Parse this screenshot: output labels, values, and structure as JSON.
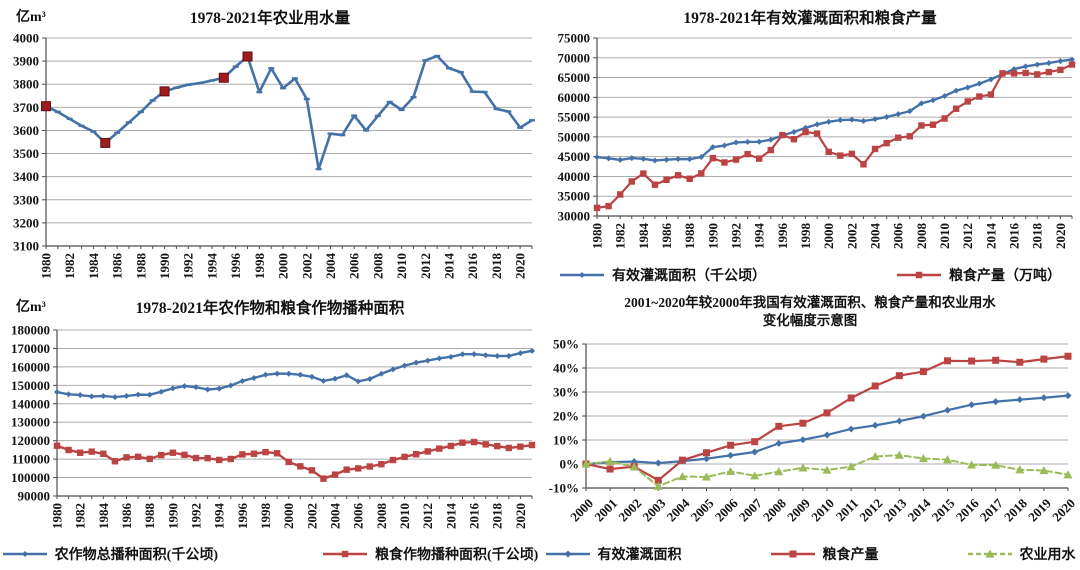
{
  "chart_data": [
    {
      "id": "agricultural-water-use",
      "type": "line",
      "title": "1978-2021年农业用水量",
      "unit_label": "亿m³",
      "ylim": [
        3100,
        4000
      ],
      "y_step": 100,
      "y_suffix": "",
      "grid": true,
      "legend_position": "none",
      "x_label_every": 2,
      "x_label_rotation": 90,
      "x": [
        1980,
        1981,
        1982,
        1983,
        1984,
        1985,
        1986,
        1987,
        1988,
        1989,
        1990,
        1991,
        1992,
        1993,
        1994,
        1995,
        1996,
        1997,
        1998,
        1999,
        2000,
        2001,
        2002,
        2003,
        2004,
        2005,
        2006,
        2007,
        2008,
        2009,
        2010,
        2011,
        2012,
        2013,
        2014,
        2015,
        2016,
        2017,
        2018,
        2019,
        2020,
        2021
      ],
      "series": [
        {
          "color": "#4472A8",
          "marker": "dash",
          "width": 2.6,
          "values": [
            3705,
            3680,
            3650,
            3620,
            3595,
            3546,
            3590,
            3635,
            3680,
            3730,
            3769,
            3785,
            3798,
            3805,
            3816,
            3828,
            3876,
            3920,
            3766,
            3869,
            3783,
            3825,
            3736,
            3433,
            3586,
            3580,
            3664,
            3600,
            3663,
            3723,
            3689,
            3744,
            3903,
            3922,
            3869,
            3852,
            3768,
            3766,
            3693,
            3682,
            3612,
            3644
          ]
        },
        {
          "color": "#9E1B1E",
          "marker": "square",
          "marker_size": 4.5,
          "marker_stroke": "#5E0F12",
          "line": false,
          "x": [
            1980,
            1985,
            1990,
            1995,
            1997
          ],
          "values": [
            3705,
            3546,
            3769,
            3828,
            3920
          ]
        }
      ]
    },
    {
      "id": "irrigation-area-and-grain-output",
      "type": "line",
      "title": "1978-2021年有效灌溉面积和粮食产量",
      "ylim": [
        30000,
        75000
      ],
      "y_step": 5000,
      "y_suffix": "",
      "grid": true,
      "legend_position": "bottom",
      "x_label_every": 2,
      "x_label_rotation": 90,
      "x": [
        1980,
        1981,
        1982,
        1983,
        1984,
        1985,
        1986,
        1987,
        1988,
        1989,
        1990,
        1991,
        1992,
        1993,
        1994,
        1995,
        1996,
        1997,
        1998,
        1999,
        2000,
        2001,
        2002,
        2003,
        2004,
        2005,
        2006,
        2007,
        2008,
        2009,
        2010,
        2011,
        2012,
        2013,
        2014,
        2015,
        2016,
        2017,
        2018,
        2019,
        2020,
        2021
      ],
      "series": [
        {
          "name": "有效灌溉面积（千公顷）",
          "color": "#4472A8",
          "marker": "diamond",
          "marker_size": 3,
          "width": 2.4,
          "values": [
            44888,
            44574,
            44177,
            44644,
            44453,
            44036,
            44226,
            44403,
            44376,
            44917,
            47403,
            47822,
            48590,
            48728,
            48759,
            49281,
            50381,
            51239,
            52296,
            53158,
            53820,
            54249,
            54355,
            54014,
            54478,
            55029,
            55750,
            56518,
            58472,
            59261,
            60348,
            61682,
            62491,
            63473,
            64540,
            65873,
            67141,
            67816,
            68272,
            68679,
            69160,
            69561
          ]
        },
        {
          "name": "粮食产量（万吨）",
          "color": "#BB4343",
          "marker": "square",
          "marker_size": 3.2,
          "width": 2.2,
          "values": [
            32056,
            32502,
            35450,
            38728,
            40731,
            37911,
            39151,
            40298,
            39408,
            40755,
            44624,
            43529,
            44266,
            45649,
            44510,
            46662,
            50454,
            49417,
            51230,
            50839,
            46218,
            45264,
            45706,
            43070,
            46947,
            48402,
            49800,
            50160,
            52871,
            53082,
            54648,
            57121,
            58958,
            60194,
            60703,
            66060,
            66044,
            66161,
            65789,
            66384,
            66949,
            68285
          ]
        }
      ]
    },
    {
      "id": "sown-area",
      "type": "line",
      "title": "1978-2021年农作物和粮食作物播种面积",
      "unit_label": "亿m³",
      "ylim": [
        90000,
        180000
      ],
      "y_step": 10000,
      "y_suffix": "",
      "grid": true,
      "legend_position": "bottom",
      "x_label_every": 2,
      "x_label_rotation": 90,
      "x": [
        1980,
        1981,
        1982,
        1983,
        1984,
        1985,
        1986,
        1987,
        1988,
        1989,
        1990,
        1991,
        1992,
        1993,
        1994,
        1995,
        1996,
        1997,
        1998,
        1999,
        2000,
        2001,
        2002,
        2003,
        2004,
        2005,
        2006,
        2007,
        2008,
        2009,
        2010,
        2011,
        2012,
        2013,
        2014,
        2015,
        2016,
        2017,
        2018,
        2019,
        2020,
        2021
      ],
      "series": [
        {
          "name": "农作物总播种面积(千公顷)",
          "color": "#4472A8",
          "marker": "diamond",
          "marker_size": 3,
          "width": 2.4,
          "values": [
            146380,
            145157,
            144755,
            143993,
            144221,
            143626,
            144204,
            144957,
            144869,
            146554,
            148362,
            149586,
            149007,
            147741,
            148241,
            149879,
            152381,
            153969,
            155706,
            156373,
            156300,
            155708,
            154636,
            152415,
            153553,
            155488,
            152149,
            153464,
            156266,
            158639,
            160675,
            162283,
            163416,
            164627,
            165446,
            166829,
            166939,
            166332,
            165902,
            165931,
            167487,
            168695
          ]
        },
        {
          "name": "粮食作物播种面积(千公顷)",
          "color": "#BB4343",
          "marker": "square",
          "marker_size": 3.2,
          "width": 2.4,
          "values": [
            117234,
            114958,
            113462,
            114047,
            112884,
            108845,
            110933,
            111268,
            110123,
            112205,
            113466,
            112314,
            110560,
            110509,
            109544,
            110060,
            112548,
            112912,
            113787,
            113161,
            108463,
            106080,
            103891,
            99410,
            101606,
            104278,
            104958,
            105997,
            107239,
            109500,
            111216,
            112655,
            114170,
            115700,
            117146,
            118897,
            119230,
            117989,
            117038,
            116064,
            116768,
            117632
          ]
        }
      ]
    },
    {
      "id": "change-rate-vs-2000",
      "type": "line",
      "title": "2001~2020年较2000年我国有效灌溉面积、粮食产量和农业用水",
      "title_line2": "变化幅度示意图",
      "ylim": [
        -10,
        50
      ],
      "y_step": 10,
      "y_suffix": "%",
      "grid": true,
      "legend_position": "bottom",
      "x_label_every": 1,
      "x_label_rotation": 45,
      "x": [
        2000,
        2001,
        2002,
        2003,
        2004,
        2005,
        2006,
        2007,
        2008,
        2009,
        2010,
        2011,
        2012,
        2013,
        2014,
        2015,
        2016,
        2017,
        2018,
        2019,
        2020
      ],
      "series": [
        {
          "name": "有效灌溉面积",
          "color": "#4472A8",
          "marker": "diamond",
          "marker_size": 3.5,
          "width": 2.2,
          "values": [
            0,
            0.8,
            1.0,
            0.4,
            1.2,
            2.2,
            3.6,
            5.0,
            8.6,
            10.1,
            12.1,
            14.6,
            16.1,
            17.9,
            19.9,
            22.4,
            24.7,
            26.0,
            26.8,
            27.6,
            28.5
          ]
        },
        {
          "name": "粮食产量",
          "color": "#BB4343",
          "marker": "square",
          "marker_size": 3.5,
          "width": 2.2,
          "values": [
            0,
            -2.1,
            -1.1,
            -6.8,
            1.6,
            4.7,
            7.8,
            9.3,
            15.7,
            17.0,
            21.3,
            27.5,
            32.5,
            36.8,
            38.5,
            43.0,
            42.9,
            43.2,
            42.4,
            43.7,
            44.9
          ]
        },
        {
          "name": "农业用水",
          "color": "#9BBB59",
          "marker": "triangle",
          "marker_size": 4.5,
          "width": 2,
          "dashed": true,
          "values": [
            0,
            1.1,
            -1.2,
            -9.3,
            -5.2,
            -5.4,
            -3.1,
            -4.9,
            -3.2,
            -1.6,
            -2.5,
            -1.1,
            3.1,
            3.7,
            2.3,
            1.8,
            -0.4,
            -0.5,
            -2.4,
            -2.7,
            -4.5
          ]
        }
      ]
    }
  ]
}
